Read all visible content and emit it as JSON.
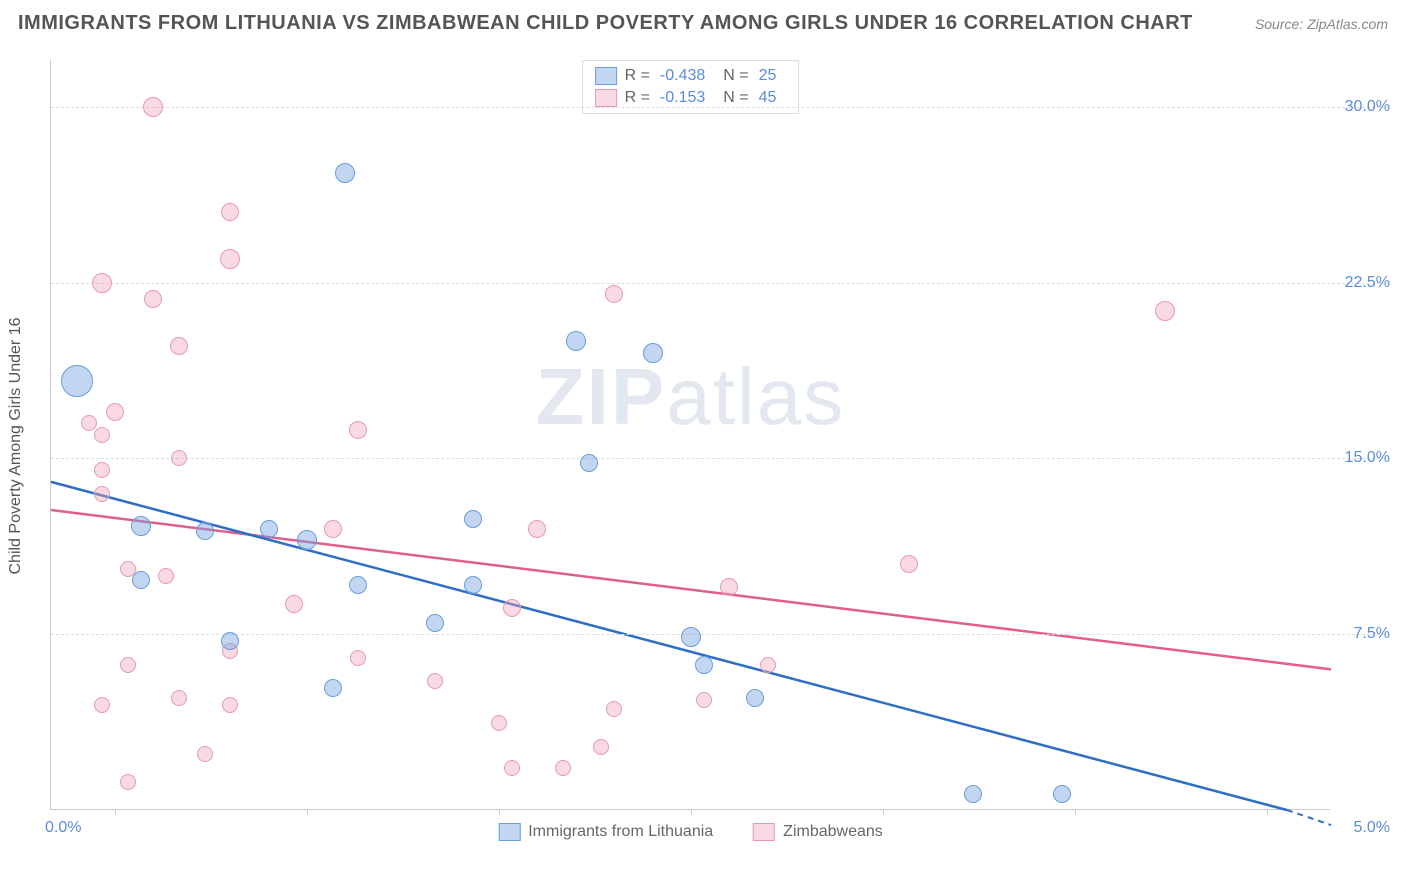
{
  "header": {
    "title": "IMMIGRANTS FROM LITHUANIA VS ZIMBABWEAN CHILD POVERTY AMONG GIRLS UNDER 16 CORRELATION CHART",
    "source_label": "Source: ",
    "source_value": "ZipAtlas.com"
  },
  "chart": {
    "type": "scatter",
    "y_axis_label": "Child Poverty Among Girls Under 16",
    "background_color": "#ffffff",
    "grid_color": "#dddddd",
    "x_range": [
      0.0,
      5.0
    ],
    "y_range_pct": [
      0.0,
      32.0
    ],
    "y_ticks": [
      {
        "value": 30.0,
        "label": "30.0%"
      },
      {
        "value": 22.5,
        "label": "22.5%"
      },
      {
        "value": 15.0,
        "label": "15.0%"
      },
      {
        "value": 7.5,
        "label": "7.5%"
      }
    ],
    "x_ticks_pos": [
      0.05,
      0.2,
      0.35,
      0.5,
      0.65,
      0.8,
      0.95
    ],
    "x_left_label": "0.0%",
    "x_right_label": "5.0%",
    "watermark": {
      "part1": "ZIP",
      "part2": "atlas"
    }
  },
  "series": {
    "blue": {
      "label": "Immigrants from Lithuania",
      "fill": "rgba(120,165,225,0.45)",
      "stroke": "#6a9ed8",
      "trend_color": "#2f6fc2",
      "R": "-0.438",
      "N": "25",
      "trend": {
        "y_at_x0_pct": 14.0,
        "y_at_x1_pct": -0.5
      },
      "points": [
        {
          "x": 0.02,
          "y": 18.3,
          "r": 16
        },
        {
          "x": 0.23,
          "y": 27.2,
          "r": 10
        },
        {
          "x": 0.41,
          "y": 20.0,
          "r": 10
        },
        {
          "x": 0.47,
          "y": 19.5,
          "r": 10
        },
        {
          "x": 0.42,
          "y": 14.8,
          "r": 9
        },
        {
          "x": 0.33,
          "y": 12.4,
          "r": 9
        },
        {
          "x": 0.07,
          "y": 12.1,
          "r": 10
        },
        {
          "x": 0.12,
          "y": 11.9,
          "r": 9
        },
        {
          "x": 0.17,
          "y": 12.0,
          "r": 9
        },
        {
          "x": 0.2,
          "y": 11.5,
          "r": 10
        },
        {
          "x": 0.07,
          "y": 9.8,
          "r": 9
        },
        {
          "x": 0.24,
          "y": 9.6,
          "r": 9
        },
        {
          "x": 0.33,
          "y": 9.6,
          "r": 9
        },
        {
          "x": 0.14,
          "y": 7.2,
          "r": 9
        },
        {
          "x": 0.3,
          "y": 8.0,
          "r": 9
        },
        {
          "x": 0.22,
          "y": 5.2,
          "r": 9
        },
        {
          "x": 0.5,
          "y": 7.4,
          "r": 10
        },
        {
          "x": 0.51,
          "y": 6.2,
          "r": 9
        },
        {
          "x": 0.55,
          "y": 4.8,
          "r": 9
        },
        {
          "x": 0.72,
          "y": 0.7,
          "r": 9
        },
        {
          "x": 0.79,
          "y": 0.7,
          "r": 9
        }
      ]
    },
    "pink": {
      "label": "Zimbabweans",
      "fill": "rgba(240,160,185,0.40)",
      "stroke": "#e59ab3",
      "trend_color": "#e15f8e",
      "R": "-0.153",
      "N": "45",
      "trend": {
        "y_at_x0_pct": 12.8,
        "y_at_x1_pct": 6.0
      },
      "points": [
        {
          "x": 0.08,
          "y": 30.0,
          "r": 10
        },
        {
          "x": 0.14,
          "y": 25.5,
          "r": 9
        },
        {
          "x": 0.14,
          "y": 23.5,
          "r": 10
        },
        {
          "x": 0.04,
          "y": 22.5,
          "r": 10
        },
        {
          "x": 0.08,
          "y": 21.8,
          "r": 9
        },
        {
          "x": 0.44,
          "y": 22.0,
          "r": 9
        },
        {
          "x": 0.87,
          "y": 21.3,
          "r": 10
        },
        {
          "x": 0.1,
          "y": 19.8,
          "r": 9
        },
        {
          "x": 0.05,
          "y": 17.0,
          "r": 9
        },
        {
          "x": 0.03,
          "y": 16.5,
          "r": 8
        },
        {
          "x": 0.04,
          "y": 16.0,
          "r": 8
        },
        {
          "x": 0.24,
          "y": 16.2,
          "r": 9
        },
        {
          "x": 0.1,
          "y": 15.0,
          "r": 8
        },
        {
          "x": 0.04,
          "y": 14.5,
          "r": 8
        },
        {
          "x": 0.04,
          "y": 13.5,
          "r": 8
        },
        {
          "x": 0.22,
          "y": 12.0,
          "r": 9
        },
        {
          "x": 0.38,
          "y": 12.0,
          "r": 9
        },
        {
          "x": 0.06,
          "y": 10.3,
          "r": 8
        },
        {
          "x": 0.09,
          "y": 10.0,
          "r": 8
        },
        {
          "x": 0.19,
          "y": 8.8,
          "r": 9
        },
        {
          "x": 0.36,
          "y": 8.6,
          "r": 9
        },
        {
          "x": 0.53,
          "y": 9.5,
          "r": 9
        },
        {
          "x": 0.67,
          "y": 10.5,
          "r": 9
        },
        {
          "x": 0.06,
          "y": 6.2,
          "r": 8
        },
        {
          "x": 0.04,
          "y": 4.5,
          "r": 8
        },
        {
          "x": 0.1,
          "y": 4.8,
          "r": 8
        },
        {
          "x": 0.14,
          "y": 4.5,
          "r": 8
        },
        {
          "x": 0.14,
          "y": 6.8,
          "r": 8
        },
        {
          "x": 0.24,
          "y": 6.5,
          "r": 8
        },
        {
          "x": 0.3,
          "y": 5.5,
          "r": 8
        },
        {
          "x": 0.35,
          "y": 3.7,
          "r": 8
        },
        {
          "x": 0.36,
          "y": 1.8,
          "r": 8
        },
        {
          "x": 0.4,
          "y": 1.8,
          "r": 8
        },
        {
          "x": 0.43,
          "y": 2.7,
          "r": 8
        },
        {
          "x": 0.44,
          "y": 4.3,
          "r": 8
        },
        {
          "x": 0.51,
          "y": 4.7,
          "r": 8
        },
        {
          "x": 0.56,
          "y": 6.2,
          "r": 8
        },
        {
          "x": 0.06,
          "y": 1.2,
          "r": 8
        },
        {
          "x": 0.12,
          "y": 2.4,
          "r": 8
        }
      ]
    }
  },
  "legend_bottom": {
    "item1": "Immigrants from Lithuania",
    "item2": "Zimbabweans"
  }
}
